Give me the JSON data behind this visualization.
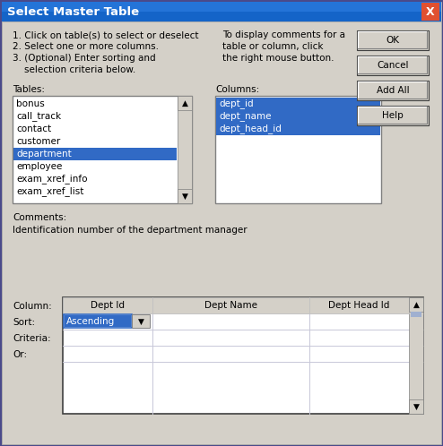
{
  "title": "Select Master Table",
  "dialog_bg": "#d4d0c8",
  "title_bar_bg": "#0a6fd4",
  "instructions": [
    "1. Click on table(s) to select or deselect",
    "2. Select one or more columns.",
    "3. (Optional) Enter sorting and",
    "    selection criteria below."
  ],
  "right_instructions": [
    "To display comments for a",
    "table or column, click",
    "the right mouse button."
  ],
  "tables_label": "Tables:",
  "tables_list": [
    "bonus",
    "call_track",
    "contact",
    "customer",
    "department",
    "employee",
    "exam_xref_info",
    "exam_xref_list"
  ],
  "tables_selected": "department",
  "columns_label": "Columns:",
  "columns_list": [
    "dept_id",
    "dept_name",
    "dept_head_id"
  ],
  "buttons": [
    "OK",
    "Cancel",
    "Add All",
    "Help"
  ],
  "comments_label": "Comments:",
  "comments_text": "Identification number of the department manager",
  "grid_row_labels": [
    "Column:",
    "Sort:",
    "Criteria:",
    "Or:"
  ],
  "grid_columns": [
    "Dept Id",
    "Dept Name",
    "Dept Head Id"
  ],
  "sort_value": "Ascending",
  "list_bg": "#ffffff",
  "selected_row_color": "#316ac5",
  "selected_text_color": "#ffffff",
  "normal_text_color": "#000000",
  "grid_line_color": "#d8d8e8",
  "font_size": 7.5,
  "title_font_size": 9.5,
  "outer_border": "#4a4a8a"
}
